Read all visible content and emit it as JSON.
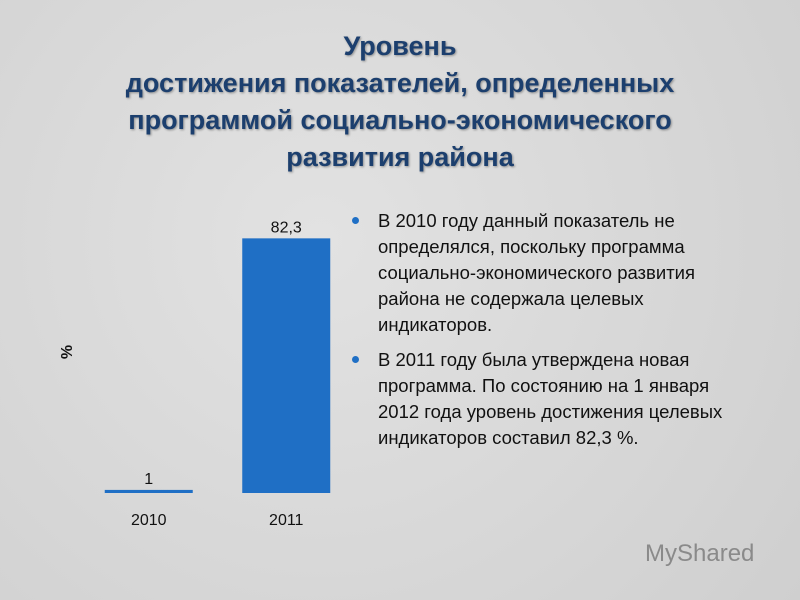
{
  "chart_data": {
    "type": "bar",
    "title": [
      "Уровень",
      "достижения показателей, определенных",
      "программой социально-экономического",
      "развития района"
    ],
    "ylabel": "%",
    "categories": [
      "2010",
      "2011"
    ],
    "values": [
      1,
      82.3
    ],
    "value_labels": [
      "1",
      "82,3"
    ],
    "color": "#1f6fc5",
    "ylim": [
      0,
      85
    ]
  },
  "bullets": [
    "В 2010 году данный показатель не определялся, поскольку программа социально-экономического развития района не содержала целевых индикаторов.",
    "В 2011 году была утверждена новая программа. По состоянию на 1 января 2012 года уровень достижения целевых индикаторов составил 82,3 %."
  ],
  "watermark": "MyShared"
}
